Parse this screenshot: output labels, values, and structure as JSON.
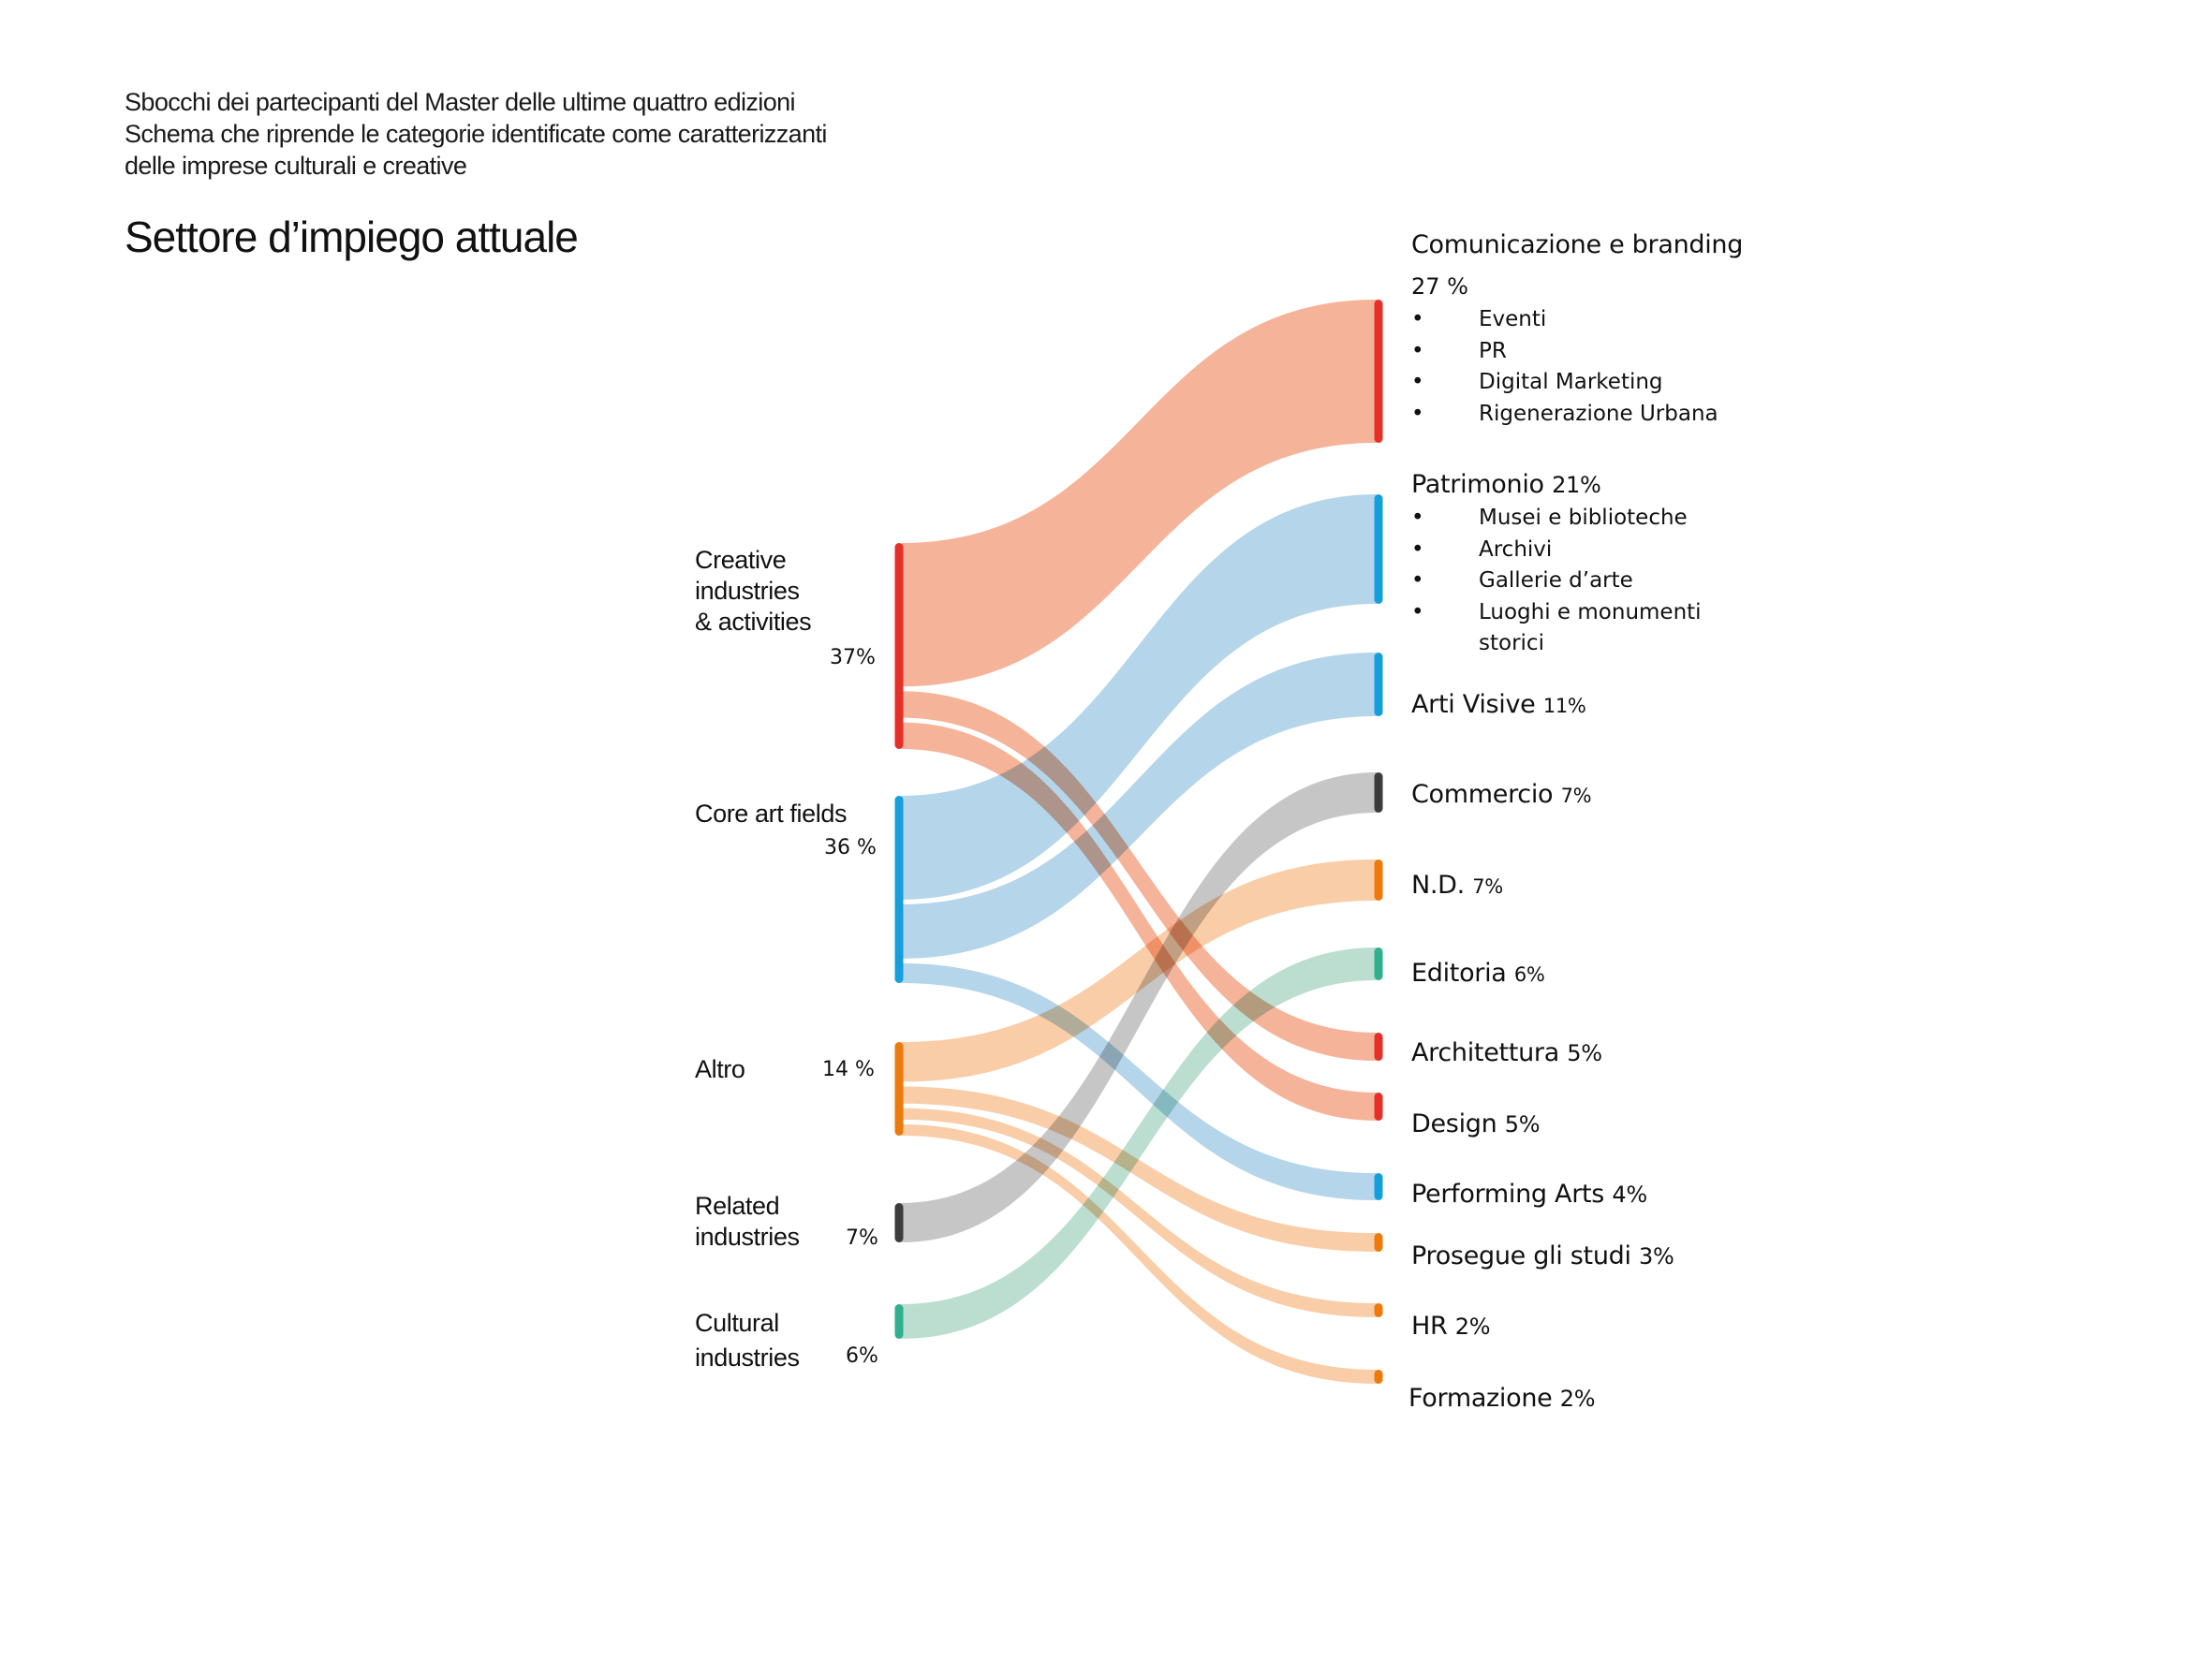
{
  "header": {
    "intro_lines": [
      "Sbocchi dei partecipanti del Master delle ultime quattro edizioni",
      "Schema che riprende le categorie identificate come caratterizzanti",
      "delle imprese culturali e creative"
    ],
    "title": "Settore d’impiego attuale"
  },
  "colors": {
    "creative": {
      "bar": "#e63027",
      "flow": "#f08a63"
    },
    "core": {
      "bar": "#149fdc",
      "flow": "#8dbfde"
    },
    "altro": {
      "bar": "#ee7a0b",
      "flow": "#f6b27a"
    },
    "related": {
      "bar": "#3c3c3c",
      "flow": "#a8a8a8"
    },
    "cultural": {
      "bar": "#2fb08e",
      "flow": "#96ccb8"
    }
  },
  "chart_data": {
    "type": "sankey",
    "title": "Settore d’impiego attuale",
    "unit": "%",
    "sources": [
      {
        "id": "creative",
        "label_lines": [
          "Creative",
          "industries",
          "& activities"
        ],
        "value": 37,
        "value_label": "37%"
      },
      {
        "id": "core",
        "label_lines": [
          "Core art fields"
        ],
        "value": 36,
        "value_label": "36 %"
      },
      {
        "id": "altro",
        "label_lines": [
          "Altro"
        ],
        "value": 14,
        "value_label": "14 %"
      },
      {
        "id": "related",
        "label_lines": [
          "Related",
          "industries"
        ],
        "value": 7,
        "value_label": "7%"
      },
      {
        "id": "cultural",
        "label_lines": [
          "Cultural",
          "industries"
        ],
        "value": 6,
        "value_label": "6%"
      }
    ],
    "targets": [
      {
        "id": "comunicazione",
        "label": "Comunicazione e branding",
        "value": 27,
        "value_label": "27 %",
        "group": "creative",
        "sub_items": [
          "Eventi",
          "PR",
          "Digital Marketing",
          "Rigenerazione Urbana"
        ]
      },
      {
        "id": "patrimonio",
        "label": "Patrimonio",
        "value": 21,
        "value_label": "21%",
        "group": "core",
        "sub_items": [
          "Musei e biblioteche",
          "Archivi",
          "Gallerie d’arte",
          "Luoghi e monumenti storici"
        ]
      },
      {
        "id": "arti_visive",
        "label": "Arti Visive",
        "value": 11,
        "value_label": "11%",
        "group": "core"
      },
      {
        "id": "commercio",
        "label": "Commercio",
        "value": 7,
        "value_label": "7%",
        "group": "related"
      },
      {
        "id": "nd",
        "label": "N.D.",
        "value": 7,
        "value_label": "7%",
        "group": "altro"
      },
      {
        "id": "editoria",
        "label": "Editoria",
        "value": 6,
        "value_label": "6%",
        "group": "cultural"
      },
      {
        "id": "architettura",
        "label": "Architettura",
        "value": 5,
        "value_label": "5%",
        "group": "creative"
      },
      {
        "id": "design",
        "label": "Design",
        "value": 5,
        "value_label": "5%",
        "group": "creative"
      },
      {
        "id": "performing_arts",
        "label": "Performing Arts",
        "value": 4,
        "value_label": "4%",
        "group": "core"
      },
      {
        "id": "prosegue_studi",
        "label": "Prosegue gli studi",
        "value": 3,
        "value_label": "3%",
        "group": "altro"
      },
      {
        "id": "hr",
        "label": "HR",
        "value": 2,
        "value_label": "2%",
        "group": "altro"
      },
      {
        "id": "formazione",
        "label": "Formazione",
        "value": 2,
        "value_label": "2%",
        "group": "altro"
      }
    ],
    "links": [
      {
        "source": "creative",
        "target": "comunicazione",
        "value": 27
      },
      {
        "source": "creative",
        "target": "architettura",
        "value": 5
      },
      {
        "source": "creative",
        "target": "design",
        "value": 5
      },
      {
        "source": "core",
        "target": "patrimonio",
        "value": 21
      },
      {
        "source": "core",
        "target": "arti_visive",
        "value": 11
      },
      {
        "source": "core",
        "target": "performing_arts",
        "value": 4
      },
      {
        "source": "altro",
        "target": "nd",
        "value": 7
      },
      {
        "source": "altro",
        "target": "prosegue_studi",
        "value": 3
      },
      {
        "source": "altro",
        "target": "hr",
        "value": 2
      },
      {
        "source": "altro",
        "target": "formazione",
        "value": 2
      },
      {
        "source": "related",
        "target": "commercio",
        "value": 7
      },
      {
        "source": "cultural",
        "target": "editoria",
        "value": 6
      }
    ]
  }
}
